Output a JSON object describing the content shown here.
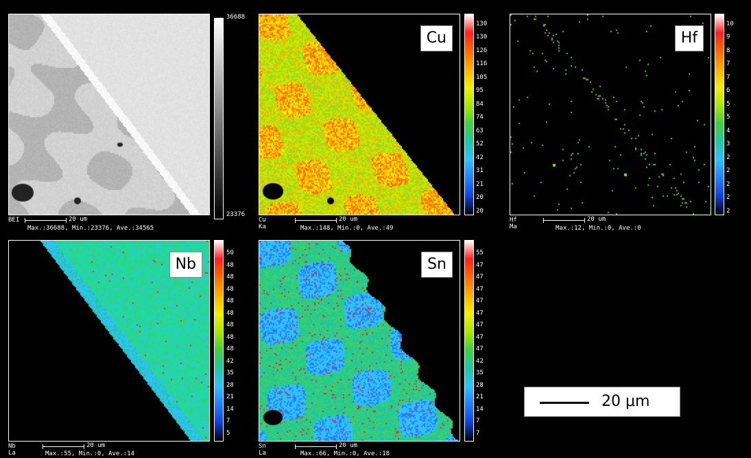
{
  "panels": {
    "bei": {
      "code": "BEI",
      "scale_label": "20 um",
      "stats": "Max.:36688, Min.:23376, Ave.:34565",
      "colorbar_labels": [
        "36688",
        "23376"
      ]
    },
    "cu": {
      "code": "Cu Ka",
      "element": "Cu",
      "scale_label": "20 um",
      "stats": "Max.:148, Min.:0, Ave.:49",
      "colorbar_labels": [
        "130",
        "130",
        "126",
        "116",
        "105",
        "95",
        "84",
        "74",
        "63",
        "52",
        "42",
        "31",
        "21",
        "20",
        "20"
      ]
    },
    "hf": {
      "code": "Hf Ma",
      "element": "Hf",
      "scale_label": "20 um",
      "stats": "Max.:12, Min.:0, Ave.:0",
      "colorbar_labels": [
        "10",
        "9",
        "8",
        "7",
        "7",
        "6",
        "5",
        "5",
        "4",
        "3",
        "2",
        "2",
        "2",
        "2",
        "2"
      ]
    },
    "nb": {
      "code": "Nb La",
      "element": "Nb",
      "scale_label": "20 um",
      "stats": "Max.:55, Min.:0, Ave.:14",
      "colorbar_labels": [
        "50",
        "48",
        "48",
        "48",
        "48",
        "48",
        "48",
        "48",
        "48",
        "42",
        "35",
        "28",
        "21",
        "14",
        "7",
        "5"
      ]
    },
    "sn": {
      "code": "Sn La",
      "element": "Sn",
      "scale_label": "20 um",
      "stats": "Max.:66, Min.:0, Ave.:18",
      "colorbar_labels": [
        "55",
        "47",
        "47",
        "47",
        "47",
        "47",
        "47",
        "47",
        "47",
        "42",
        "35",
        "28",
        "21",
        "14",
        "7",
        "7"
      ]
    }
  },
  "scale_bar": {
    "label": "20 μm"
  },
  "colors": {
    "spectrum": [
      "#ffffff",
      "#ff2020",
      "#ff6a00",
      "#ffb000",
      "#f0f000",
      "#a8e800",
      "#40d040",
      "#20c8a0",
      "#30c0ff",
      "#2080ff",
      "#1040e0",
      "#000000"
    ]
  }
}
